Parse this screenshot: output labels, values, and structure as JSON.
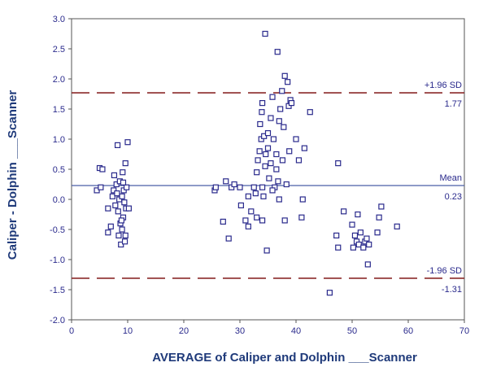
{
  "chart_data": {
    "type": "scatter",
    "xlabel": "AVERAGE of Caliper and Dolphin ___Scanner",
    "ylabel": "Caliper - Dolphin ___Scanner",
    "xlim": [
      0,
      70
    ],
    "ylim": [
      -2.0,
      3.0
    ],
    "x_ticks": [
      0,
      10,
      20,
      30,
      40,
      50,
      60,
      70
    ],
    "y_ticks": [
      3.0,
      2.5,
      2.0,
      1.5,
      1.0,
      0.5,
      0.0,
      -0.5,
      -1.0,
      -1.5,
      -2.0
    ],
    "x_tick_labels": [
      "0",
      "10",
      "20",
      "30",
      "40",
      "50",
      "60",
      "70"
    ],
    "y_tick_labels": [
      "3.0",
      "2.5",
      "2.0",
      "1.5",
      "1.0",
      "0.5",
      "0.0",
      "-0.5",
      "-1.0",
      "-1.5",
      "-2.0"
    ],
    "grid": false,
    "reference_lines": [
      {
        "value": 1.77,
        "label": "+1.96 SD",
        "value_label": "1.77",
        "style": "dashed",
        "color": "#8b2a2a"
      },
      {
        "value": 0.23,
        "label": "Mean",
        "value_label": "0.23",
        "style": "solid",
        "color": "#4a5fa8"
      },
      {
        "value": -1.31,
        "label": "-1.96 SD",
        "value_label": "-1.31",
        "style": "dashed",
        "color": "#8b2a2a"
      }
    ],
    "marker_color": "#2a2a8c",
    "points": [
      [
        5,
        0.52
      ],
      [
        5.5,
        0.5
      ],
      [
        4.5,
        0.15
      ],
      [
        5.2,
        0.2
      ],
      [
        6.5,
        -0.15
      ],
      [
        6.5,
        -0.55
      ],
      [
        7,
        -0.45
      ],
      [
        7.3,
        0.05
      ],
      [
        7.5,
        0.15
      ],
      [
        7.8,
        -0.1
      ],
      [
        7.6,
        0.4
      ],
      [
        8,
        0.25
      ],
      [
        8.2,
        0.9
      ],
      [
        8.3,
        -0.2
      ],
      [
        8.4,
        -0.6
      ],
      [
        8.5,
        0.0
      ],
      [
        8.6,
        0.3
      ],
      [
        8.7,
        -0.4
      ],
      [
        8.8,
        -0.75
      ],
      [
        9,
        -0.5
      ],
      [
        9,
        0.05
      ],
      [
        9.1,
        0.45
      ],
      [
        9.2,
        -0.3
      ],
      [
        9.3,
        0.15
      ],
      [
        9.5,
        -0.7
      ],
      [
        9.6,
        0.6
      ],
      [
        9.7,
        -0.15
      ],
      [
        9.8,
        0.2
      ],
      [
        10,
        0.95
      ],
      [
        10.2,
        -0.15
      ],
      [
        9.4,
        -0.05
      ],
      [
        8.9,
        -0.35
      ],
      [
        9.2,
        0.28
      ],
      [
        8.1,
        0.1
      ],
      [
        9.6,
        -0.6
      ],
      [
        25.5,
        0.15
      ],
      [
        25.7,
        0.2
      ],
      [
        27,
        -0.37
      ],
      [
        27.5,
        0.3
      ],
      [
        28,
        -0.65
      ],
      [
        28.5,
        0.2
      ],
      [
        29,
        0.25
      ],
      [
        30,
        0.2
      ],
      [
        30.2,
        -0.1
      ],
      [
        31,
        -0.35
      ],
      [
        31.5,
        -0.45
      ],
      [
        31.5,
        0.05
      ],
      [
        32,
        -0.2
      ],
      [
        32.5,
        0.2
      ],
      [
        32.8,
        0.1
      ],
      [
        33,
        -0.3
      ],
      [
        33,
        0.45
      ],
      [
        33.2,
        0.65
      ],
      [
        33.5,
        0.8
      ],
      [
        33.6,
        1.25
      ],
      [
        33.8,
        1.0
      ],
      [
        33.9,
        1.45
      ],
      [
        34,
        1.6
      ],
      [
        34,
        0.2
      ],
      [
        34,
        -0.35
      ],
      [
        34.2,
        0.05
      ],
      [
        34.3,
        1.05
      ],
      [
        34.5,
        2.75
      ],
      [
        34.5,
        0.55
      ],
      [
        34.6,
        0.75
      ],
      [
        34.8,
        -0.85
      ],
      [
        35,
        0.85
      ],
      [
        35,
        1.1
      ],
      [
        35.2,
        0.35
      ],
      [
        35.5,
        1.35
      ],
      [
        35.5,
        0.6
      ],
      [
        35.8,
        1.7
      ],
      [
        36,
        1.0
      ],
      [
        36.2,
        0.2
      ],
      [
        36.5,
        0.75
      ],
      [
        36.5,
        0.5
      ],
      [
        36.7,
        2.45
      ],
      [
        36.8,
        0.3
      ],
      [
        37,
        1.3
      ],
      [
        37.2,
        1.5
      ],
      [
        37.5,
        1.8
      ],
      [
        37.6,
        0.65
      ],
      [
        37.8,
        1.2
      ],
      [
        38,
        2.05
      ],
      [
        38,
        -0.35
      ],
      [
        38.3,
        0.25
      ],
      [
        38.5,
        1.95
      ],
      [
        38.7,
        1.55
      ],
      [
        38.8,
        0.8
      ],
      [
        39,
        1.65
      ],
      [
        39.2,
        1.6
      ],
      [
        40,
        1.0
      ],
      [
        40.5,
        0.65
      ],
      [
        41,
        -0.3
      ],
      [
        41.2,
        0.0
      ],
      [
        41.5,
        0.85
      ],
      [
        42.5,
        1.45
      ],
      [
        35.8,
        0.15
      ],
      [
        37,
        0.0
      ],
      [
        46,
        -1.55
      ],
      [
        47.2,
        -0.6
      ],
      [
        47.5,
        -0.8
      ],
      [
        47.5,
        0.6
      ],
      [
        48.5,
        -0.2
      ],
      [
        50,
        -0.42
      ],
      [
        50.2,
        -0.8
      ],
      [
        50.5,
        -0.6
      ],
      [
        50.8,
        -0.7
      ],
      [
        51,
        -0.25
      ],
      [
        51.2,
        -0.75
      ],
      [
        51.5,
        -0.55
      ],
      [
        52,
        -0.8
      ],
      [
        52.3,
        -0.7
      ],
      [
        52.6,
        -0.65
      ],
      [
        52.8,
        -1.08
      ],
      [
        53,
        -0.75
      ],
      [
        54.5,
        -0.55
      ],
      [
        54.8,
        -0.3
      ],
      [
        55.2,
        -0.12
      ],
      [
        58,
        -0.45
      ]
    ]
  }
}
